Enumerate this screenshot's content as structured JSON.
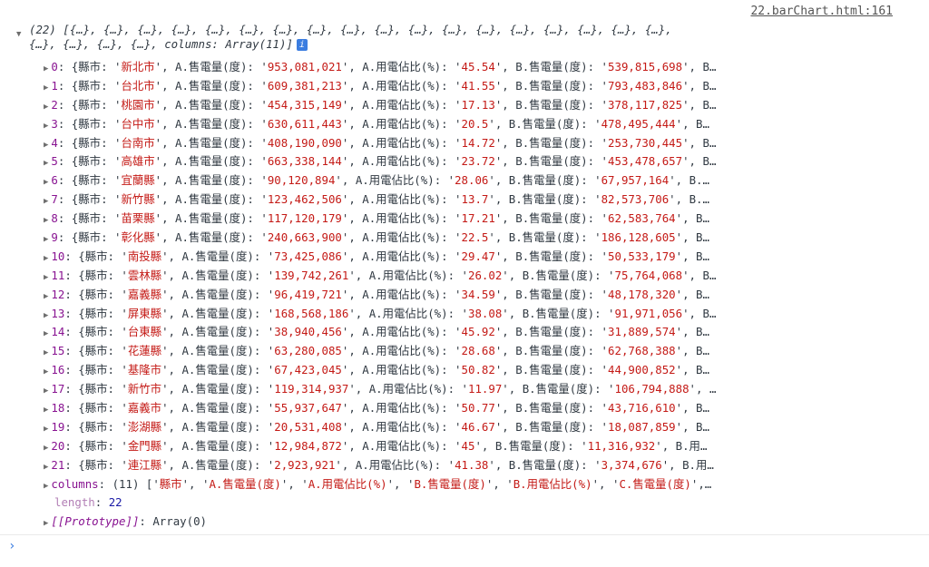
{
  "source_link": "22.barChart.html:161",
  "header": {
    "line1": "(22) [{…}, {…}, {…}, {…}, {…}, {…}, {…}, {…}, {…}, {…}, {…}, {…}, {…}, {…}, {…}, {…}, {…}, {…},",
    "line2": "{…}, {…}, {…}, {…}, columns: Array(11)]",
    "info_icon": "i"
  },
  "keys": {
    "city": "縣市",
    "a_sales": "A.售電量(度)",
    "a_pct": "A.用電佔比(%)",
    "b_sales": "B.售電量(度)"
  },
  "rows": [
    {
      "i": "0",
      "city": "新北市",
      "a": "953,081,021",
      "ap": "45.54",
      "b": "539,815,698",
      "tail": "B…"
    },
    {
      "i": "1",
      "city": "台北市",
      "a": "609,381,213",
      "ap": "41.55",
      "b": "793,483,846",
      "tail": "B…"
    },
    {
      "i": "2",
      "city": "桃園市",
      "a": "454,315,149",
      "ap": "17.13",
      "b": "378,117,825",
      "tail": "B…"
    },
    {
      "i": "3",
      "city": "台中市",
      "a": "630,611,443",
      "ap": "20.5",
      "b": "478,495,444",
      "tail": "B…"
    },
    {
      "i": "4",
      "city": "台南市",
      "a": "408,190,090",
      "ap": "14.72",
      "b": "253,730,445",
      "tail": "B…"
    },
    {
      "i": "5",
      "city": "高雄市",
      "a": "663,338,144",
      "ap": "23.72",
      "b": "453,478,657",
      "tail": "B…"
    },
    {
      "i": "6",
      "city": "宜蘭縣",
      "a": "90,120,894",
      "ap": "28.06",
      "b": "67,957,164",
      "tail": "B.…"
    },
    {
      "i": "7",
      "city": "新竹縣",
      "a": "123,462,506",
      "ap": "13.7",
      "b": "82,573,706",
      "tail": "B.…"
    },
    {
      "i": "8",
      "city": "苗栗縣",
      "a": "117,120,179",
      "ap": "17.21",
      "b": "62,583,764",
      "tail": "B…"
    },
    {
      "i": "9",
      "city": "彰化縣",
      "a": "240,663,900",
      "ap": "22.5",
      "b": "186,128,605",
      "tail": "B…"
    },
    {
      "i": "10",
      "city": "南投縣",
      "a": "73,425,086",
      "ap": "29.47",
      "b": "50,533,179",
      "tail": "B…"
    },
    {
      "i": "11",
      "city": "雲林縣",
      "a": "139,742,261",
      "ap": "26.02",
      "b": "75,764,068",
      "tail": "B…"
    },
    {
      "i": "12",
      "city": "嘉義縣",
      "a": "96,419,721",
      "ap": "34.59",
      "b": "48,178,320",
      "tail": "B…"
    },
    {
      "i": "13",
      "city": "屏東縣",
      "a": "168,568,186",
      "ap": "38.08",
      "b": "91,971,056",
      "tail": "B…"
    },
    {
      "i": "14",
      "city": "台東縣",
      "a": "38,940,456",
      "ap": "45.92",
      "b": "31,889,574",
      "tail": "B…"
    },
    {
      "i": "15",
      "city": "花蓮縣",
      "a": "63,280,085",
      "ap": "28.68",
      "b": "62,768,388",
      "tail": "B…"
    },
    {
      "i": "16",
      "city": "基隆市",
      "a": "67,423,045",
      "ap": "50.82",
      "b": "44,900,852",
      "tail": "B…"
    },
    {
      "i": "17",
      "city": "新竹市",
      "a": "119,314,937",
      "ap": "11.97",
      "b": "106,794,888",
      "tail": "…"
    },
    {
      "i": "18",
      "city": "嘉義市",
      "a": "55,937,647",
      "ap": "50.77",
      "b": "43,716,610",
      "tail": "B…"
    },
    {
      "i": "19",
      "city": "澎湖縣",
      "a": "20,531,408",
      "ap": "46.67",
      "b": "18,087,859",
      "tail": "B…"
    },
    {
      "i": "20",
      "city": "金門縣",
      "a": "12,984,872",
      "ap": "45",
      "b": "11,316,932",
      "tail": "B.用…"
    },
    {
      "i": "21",
      "city": "連江縣",
      "a": "2,923,921",
      "ap": "41.38",
      "b": "3,374,676",
      "tail": "B.用…"
    }
  ],
  "columns": {
    "key": "columns",
    "count": "(11)",
    "values": [
      "縣市",
      "A.售電量(度)",
      "A.用電佔比(%)",
      "B.售電量(度)",
      "B.用電佔比(%)",
      "C.售電量(度)"
    ],
    "tail": "…"
  },
  "length": {
    "key": "length",
    "value": "22"
  },
  "prototype": {
    "key": "[[Prototype]]",
    "value": "Array(0)"
  },
  "colors": {
    "string": "#c41a16",
    "index": "#881391",
    "number": "#1a1aa6",
    "prompt": "#3b7de0"
  }
}
